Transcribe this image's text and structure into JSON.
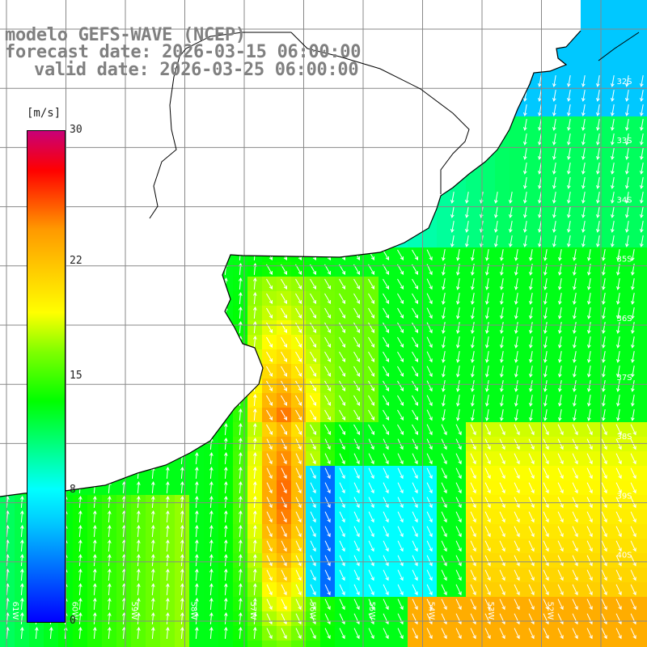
{
  "title": {
    "line1": "modelo GEFS-WAVE (NCEP)",
    "line2": "forecast date: 2026-03-15 06:00:00",
    "line3": "valid date: 2026-03-25 06:00:00"
  },
  "colorbar": {
    "unit": "[m/s]",
    "ticks": [
      "30",
      "22",
      "15",
      "8",
      "0"
    ],
    "tick_values": [
      30,
      22,
      15,
      8,
      0
    ],
    "range": [
      0,
      30
    ]
  },
  "lat_labels": [
    "32S",
    "33S",
    "34S",
    "35S",
    "36S",
    "37S",
    "38S",
    "39S",
    "40S"
  ],
  "lon_labels": [
    "61W",
    "60W",
    "59W",
    "58W",
    "57W",
    "56W",
    "55W",
    "54W",
    "53W",
    "52W"
  ],
  "colors": {
    "land": "#ffffff",
    "grid": "#888888",
    "coast": "#000000",
    "arrows": "#ffffff",
    "label_gray": "#808080"
  }
}
